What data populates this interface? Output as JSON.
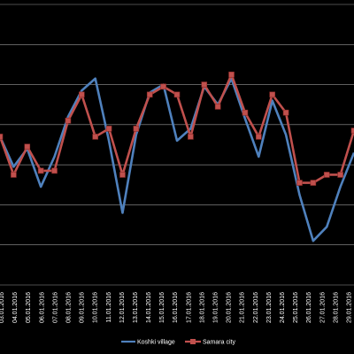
{
  "chart_data": {
    "type": "line",
    "title": "",
    "xlabel": "",
    "ylabel": "",
    "categories": [
      "03.01.2016",
      "04.01.2016",
      "05.01.2016",
      "06.01.2016",
      "07.01.2016",
      "08.01.2016",
      "09.01.2016",
      "10.01.2016",
      "11.01.2016",
      "12.01.2016",
      "13.01.2016",
      "14.01.2016",
      "15.01.2016",
      "16.01.2016",
      "17.01.2016",
      "18.01.2016",
      "19.01.2016",
      "20.01.2016",
      "21.01.2016",
      "22.01.2016",
      "23.01.2016",
      "24.01.2016",
      "25.01.2016",
      "26.01.2016",
      "27.01.2016",
      "28.01.2016",
      "29.01.2016"
    ],
    "x_tick_labels": [
      "03.01.2016",
      "",
      "04.01.2016",
      "",
      "05.01.2016",
      "",
      "06.01.2016",
      "",
      "07.01.2016",
      "",
      "08.01.2016",
      "",
      "09.01.2016",
      "",
      "10.01.2016",
      "",
      "11.01.2016",
      "",
      "12.01.2016",
      "",
      "13.01.2016",
      "",
      "14.01.2016",
      "",
      "15.01.2016",
      "",
      "16.01.2016",
      "",
      "17.01.2016",
      "",
      "18.01.2016",
      "",
      "19.01.2016",
      "",
      "20.01.2016",
      "",
      "21.01.2016",
      "",
      "22.01.2016",
      "",
      "23.01.2016",
      "",
      "24.01.2016",
      "",
      "25.01.2016",
      "",
      "26.01.2016",
      "",
      "27.01.2016",
      "",
      "28.01.2016",
      "",
      "29.01.2016"
    ],
    "ylim": [
      0,
      7
    ],
    "grid": true,
    "legend_position": "bottom",
    "series": [
      {
        "name": "Koshki village",
        "color": "#4f81bd",
        "marker": "none",
        "values": [
          3.7,
          2.95,
          3.4,
          2.45,
          3.2,
          4.2,
          4.85,
          5.15,
          3.6,
          1.8,
          3.75,
          4.8,
          5.0,
          3.6,
          3.9,
          4.95,
          4.5,
          5.15,
          4.15,
          3.2,
          4.6,
          3.75,
          2.25,
          1.1,
          1.45,
          2.45,
          3.3
        ]
      },
      {
        "name": "Samara city",
        "color": "#c0504d",
        "marker": "square",
        "values": [
          3.7,
          2.75,
          3.45,
          2.85,
          2.85,
          4.1,
          4.75,
          3.7,
          3.9,
          2.75,
          3.9,
          4.75,
          4.95,
          4.75,
          3.7,
          5.0,
          4.45,
          5.25,
          4.3,
          3.7,
          4.75,
          4.3,
          2.55,
          2.55,
          2.75,
          2.75,
          3.85
        ]
      }
    ]
  }
}
